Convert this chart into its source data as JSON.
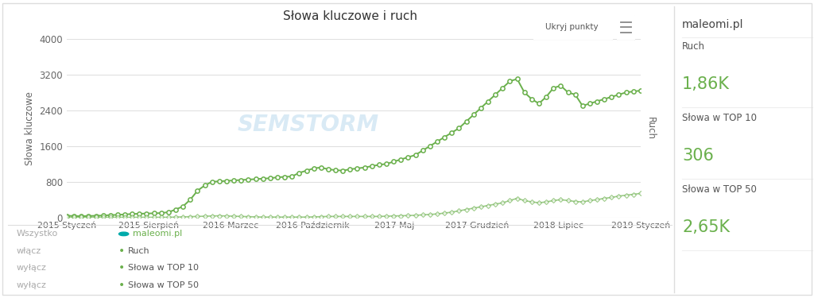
{
  "title": "Słowa kluczowe i ruch",
  "ylabel_left": "Słowa kluczowe",
  "ylabel_right": "Ruch",
  "ylim_left": [
    0,
    4000
  ],
  "yticks_left": [
    0,
    800,
    1600,
    2400,
    3200,
    4000
  ],
  "bg_color": "#ffffff",
  "plot_bg_color": "#ffffff",
  "grid_color": "#e0e0e0",
  "line_color": "#6ab04c",
  "watermark_text": "SEMSTORM",
  "x_labels": [
    "2015 Styczeń",
    "2015 Sierpień",
    "2016 Marzec",
    "2016 Październik",
    "2017 Maj",
    "2017 Grudzień",
    "2018 Lipiec",
    "2019 Styczeń"
  ],
  "series_keywords": [
    40,
    35,
    30,
    35,
    40,
    45,
    55,
    60,
    70,
    80,
    85,
    90,
    95,
    100,
    120,
    180,
    250,
    400,
    600,
    720,
    800,
    810,
    820,
    830,
    840,
    850,
    860,
    870,
    880,
    900,
    910,
    920,
    1000,
    1050,
    1100,
    1120,
    1080,
    1060,
    1050,
    1080,
    1100,
    1120,
    1150,
    1180,
    1200,
    1250,
    1300,
    1350,
    1400,
    1500,
    1600,
    1700,
    1800,
    1900,
    2000,
    2150,
    2300,
    2450,
    2600,
    2750,
    2900,
    3050,
    3100,
    2800,
    2650,
    2550,
    2700,
    2900,
    2950,
    2800,
    2750,
    2500,
    2550,
    2600,
    2650,
    2700,
    2750,
    2800,
    2820,
    2840
  ],
  "series_ruch": [
    5,
    5,
    5,
    5,
    5,
    5,
    5,
    5,
    5,
    5,
    5,
    5,
    5,
    5,
    5,
    10,
    15,
    20,
    25,
    30,
    35,
    40,
    35,
    30,
    25,
    20,
    15,
    10,
    10,
    10,
    10,
    10,
    10,
    10,
    15,
    20,
    25,
    25,
    25,
    25,
    25,
    25,
    25,
    25,
    30,
    35,
    40,
    45,
    50,
    60,
    70,
    80,
    100,
    120,
    150,
    180,
    210,
    240,
    270,
    300,
    330,
    380,
    430,
    380,
    350,
    330,
    350,
    380,
    400,
    380,
    360,
    350,
    380,
    400,
    430,
    450,
    480,
    500,
    520,
    540
  ],
  "n_points": 80,
  "sidebar_title": "maleomi.pl",
  "sidebar_items": [
    {
      "label": "Ruch",
      "value": "1,86K",
      "color": "#6ab04c"
    },
    {
      "label": "Słowa w TOP 10",
      "value": "306",
      "color": "#6ab04c"
    },
    {
      "label": "Słowa w TOP 50",
      "value": "2,65K",
      "color": "#6ab04c"
    }
  ],
  "button_text": "Ukryj punkty",
  "title_color": "#333333",
  "label_color": "#666666",
  "sidebar_title_color": "#444444",
  "sidebar_label_color": "#555555",
  "sidebar_value_color": "#6ab04c",
  "legend_col1": [
    "Wszystko",
    "włącz",
    "wyłącz",
    "wyłącz"
  ],
  "legend_col2_labels": [
    "maleomi.pl",
    "Ruch",
    "Słowa w TOP 10",
    "Słowa w TOP 50"
  ],
  "legend_col2_colors": [
    "#6ab04c",
    "#6ab04c",
    "#6ab04c",
    "#6ab04c"
  ]
}
